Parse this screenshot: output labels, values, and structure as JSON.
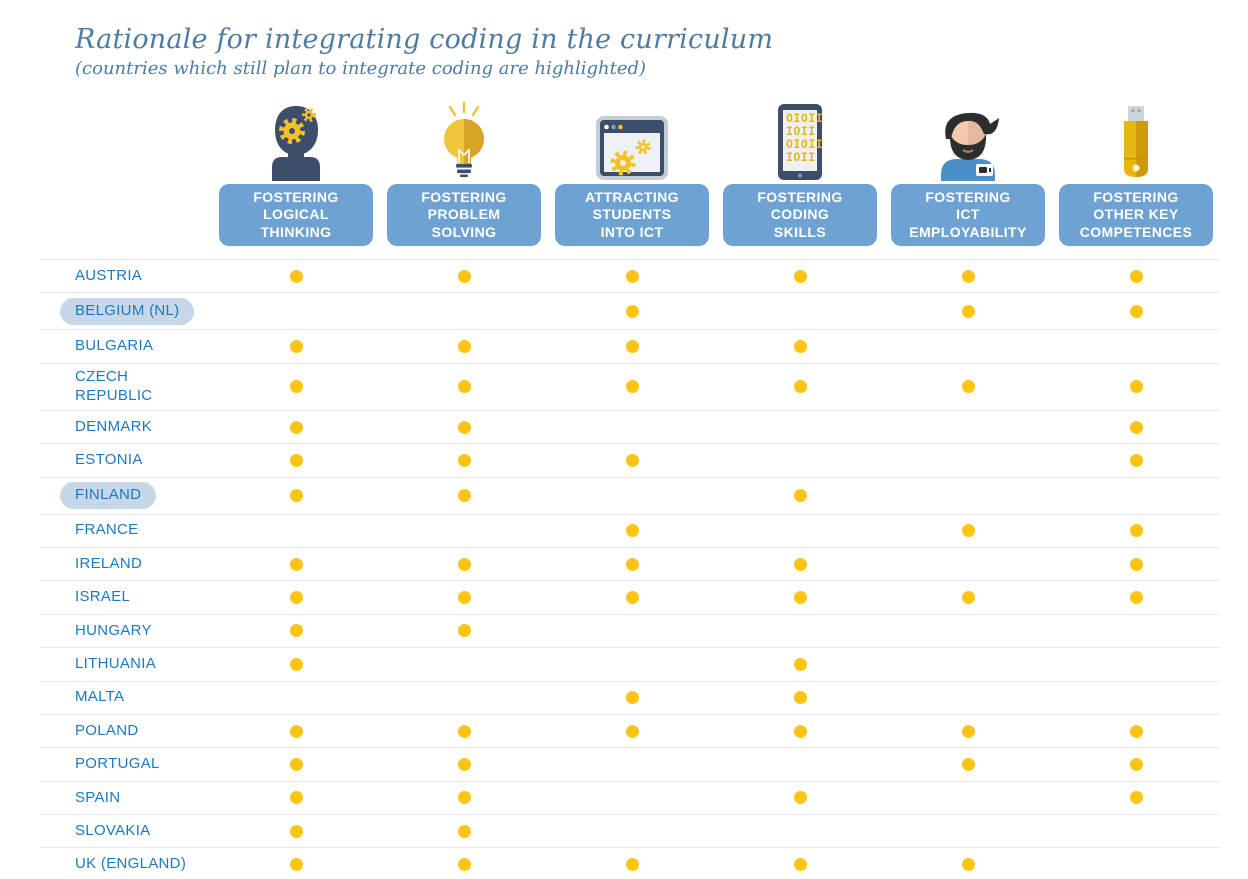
{
  "header": {
    "title": "Rationale for integrating coding in the curriculum",
    "subtitle": "(countries which still plan to integrate coding are highlighted)"
  },
  "columns": [
    {
      "id": "logical-thinking",
      "icon": "head-gears-icon",
      "label": "FOSTERING\nLOGICAL\nTHINKING"
    },
    {
      "id": "problem-solving",
      "icon": "lightbulb-icon",
      "label": "FOSTERING\nPROBLEM\nSOLVING"
    },
    {
      "id": "attracting-ict",
      "icon": "browser-gears-icon",
      "label": "ATTRACTING\nSTUDENTS\nINTO ICT"
    },
    {
      "id": "coding-skills",
      "icon": "tablet-binary-icon",
      "label": "FOSTERING\nCODING\nSKILLS"
    },
    {
      "id": "ict-employability",
      "icon": "person-beard-icon",
      "label": "FOSTERING\nICT\nEMPLOYABILITY"
    },
    {
      "id": "other-competences",
      "icon": "usb-stick-icon",
      "label": "FOSTERING\nOTHER KEY\nCOMPETENCES"
    }
  ],
  "rows": [
    {
      "country": "AUSTRIA",
      "highlighted": false,
      "values": [
        1,
        1,
        1,
        1,
        1,
        1
      ]
    },
    {
      "country": "BELGIUM (NL)",
      "highlighted": true,
      "values": [
        0,
        0,
        1,
        0,
        1,
        1
      ]
    },
    {
      "country": "BULGARIA",
      "highlighted": false,
      "values": [
        1,
        1,
        1,
        1,
        0,
        0
      ]
    },
    {
      "country": "CZECH\nREPUBLIC",
      "highlighted": false,
      "values": [
        1,
        1,
        1,
        1,
        1,
        1
      ]
    },
    {
      "country": "DENMARK",
      "highlighted": false,
      "values": [
        1,
        1,
        0,
        0,
        0,
        1
      ]
    },
    {
      "country": "ESTONIA",
      "highlighted": false,
      "values": [
        1,
        1,
        1,
        0,
        0,
        1
      ]
    },
    {
      "country": "FINLAND",
      "highlighted": true,
      "values": [
        1,
        1,
        0,
        1,
        0,
        0
      ]
    },
    {
      "country": "FRANCE",
      "highlighted": false,
      "values": [
        0,
        0,
        1,
        0,
        1,
        1
      ]
    },
    {
      "country": "IRELAND",
      "highlighted": false,
      "values": [
        1,
        1,
        1,
        1,
        0,
        1
      ]
    },
    {
      "country": "ISRAEL",
      "highlighted": false,
      "values": [
        1,
        1,
        1,
        1,
        1,
        1
      ]
    },
    {
      "country": "HUNGARY",
      "highlighted": false,
      "values": [
        1,
        1,
        0,
        0,
        0,
        0
      ]
    },
    {
      "country": "LITHUANIA",
      "highlighted": false,
      "values": [
        1,
        0,
        0,
        1,
        0,
        0
      ]
    },
    {
      "country": "MALTA",
      "highlighted": false,
      "values": [
        0,
        0,
        1,
        1,
        0,
        0
      ]
    },
    {
      "country": "POLAND",
      "highlighted": false,
      "values": [
        1,
        1,
        1,
        1,
        1,
        1
      ]
    },
    {
      "country": "PORTUGAL",
      "highlighted": false,
      "values": [
        1,
        1,
        0,
        0,
        1,
        1
      ]
    },
    {
      "country": "SPAIN",
      "highlighted": false,
      "values": [
        1,
        1,
        0,
        1,
        0,
        1
      ]
    },
    {
      "country": "SLOVAKIA",
      "highlighted": false,
      "values": [
        1,
        1,
        0,
        0,
        0,
        0
      ]
    },
    {
      "country": "UK (ENGLAND)",
      "highlighted": false,
      "values": [
        1,
        1,
        1,
        1,
        1,
        0
      ]
    }
  ],
  "colors": {
    "title_text": "#4e7ba3",
    "header_pill": "#6da2d3",
    "country_text": "#1b7abf",
    "highlight_pill": "#c5d7e8",
    "dot": "#fdc414",
    "row_line": "#e3e9f5",
    "icon_navy": "#3d4e6b",
    "icon_yellow": "#f3c228"
  },
  "chart_data": {
    "type": "table",
    "title": "Rationale for integrating coding in the curriculum",
    "subtitle": "(countries which still plan to integrate coding are highlighted)",
    "columns": [
      "Fostering logical thinking",
      "Fostering problem solving",
      "Attracting students into ICT",
      "Fostering coding skills",
      "Fostering ICT employability",
      "Fostering other key competences"
    ],
    "rows": [
      {
        "country": "Austria",
        "marks": [
          1,
          1,
          1,
          1,
          1,
          1
        ]
      },
      {
        "country": "Belgium (NL)",
        "marks": [
          0,
          0,
          1,
          0,
          1,
          1
        ]
      },
      {
        "country": "Bulgaria",
        "marks": [
          1,
          1,
          1,
          1,
          0,
          0
        ]
      },
      {
        "country": "Czech Republic",
        "marks": [
          1,
          1,
          1,
          1,
          1,
          1
        ]
      },
      {
        "country": "Denmark",
        "marks": [
          1,
          1,
          0,
          0,
          0,
          1
        ]
      },
      {
        "country": "Estonia",
        "marks": [
          1,
          1,
          1,
          0,
          0,
          1
        ]
      },
      {
        "country": "Finland",
        "marks": [
          1,
          1,
          0,
          1,
          0,
          0
        ]
      },
      {
        "country": "France",
        "marks": [
          0,
          0,
          1,
          0,
          1,
          1
        ]
      },
      {
        "country": "Ireland",
        "marks": [
          1,
          1,
          1,
          1,
          0,
          1
        ]
      },
      {
        "country": "Israel",
        "marks": [
          1,
          1,
          1,
          1,
          1,
          1
        ]
      },
      {
        "country": "Hungary",
        "marks": [
          1,
          1,
          0,
          0,
          0,
          0
        ]
      },
      {
        "country": "Lithuania",
        "marks": [
          1,
          0,
          0,
          1,
          0,
          0
        ]
      },
      {
        "country": "Malta",
        "marks": [
          0,
          0,
          1,
          1,
          0,
          0
        ]
      },
      {
        "country": "Poland",
        "marks": [
          1,
          1,
          1,
          1,
          1,
          1
        ]
      },
      {
        "country": "Portugal",
        "marks": [
          1,
          1,
          0,
          0,
          1,
          1
        ]
      },
      {
        "country": "Spain",
        "marks": [
          1,
          1,
          0,
          1,
          0,
          1
        ]
      },
      {
        "country": "Slovakia",
        "marks": [
          1,
          1,
          0,
          0,
          0,
          0
        ]
      },
      {
        "country": "UK (England)",
        "marks": [
          1,
          1,
          1,
          1,
          1,
          0
        ]
      }
    ],
    "highlighted_countries": [
      "Belgium (NL)",
      "Finland"
    ],
    "mark_symbol": "yellow-dot",
    "legend_position": "none",
    "grid": "horizontal-lines"
  }
}
